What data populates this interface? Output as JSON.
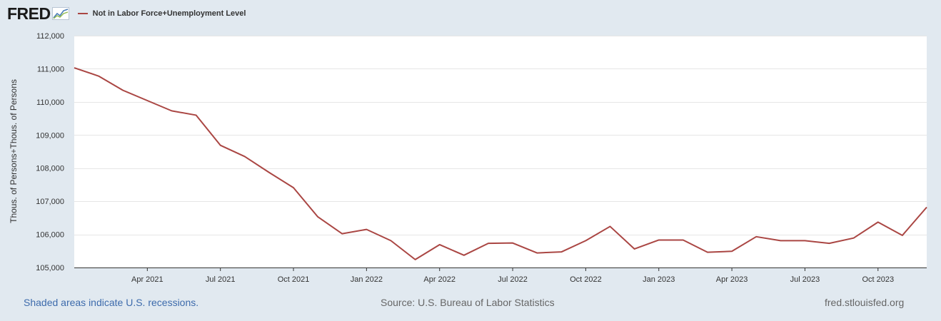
{
  "header": {
    "logo_text": "FRED",
    "logo_icon": "chart-line-icon"
  },
  "chart_data": {
    "type": "line",
    "title": "",
    "xlabel": "",
    "ylabel": "Thous. of Persons+Thous. of Persons",
    "ylim": [
      105000,
      112000
    ],
    "yticks": [
      105000,
      106000,
      107000,
      108000,
      109000,
      110000,
      111000,
      112000
    ],
    "ytick_labels": [
      "105,000",
      "106,000",
      "107,000",
      "108,000",
      "109,000",
      "110,000",
      "111,000",
      "112,000"
    ],
    "xticks": [
      {
        "label": "Apr 2021",
        "index": 3
      },
      {
        "label": "Jul 2021",
        "index": 6
      },
      {
        "label": "Oct 2021",
        "index": 9
      },
      {
        "label": "Jan 2022",
        "index": 12
      },
      {
        "label": "Apr 2022",
        "index": 15
      },
      {
        "label": "Jul 2022",
        "index": 18
      },
      {
        "label": "Oct 2022",
        "index": 21
      },
      {
        "label": "Jan 2023",
        "index": 24
      },
      {
        "label": "Apr 2023",
        "index": 27
      },
      {
        "label": "Jul 2023",
        "index": 30
      },
      {
        "label": "Oct 2023",
        "index": 33
      }
    ],
    "grid": true,
    "series": [
      {
        "name": "Not in Labor Force+Unemployment Level",
        "color": "#aa4643",
        "x": [
          "2021-01",
          "2021-02",
          "2021-03",
          "2021-04",
          "2021-05",
          "2021-06",
          "2021-07",
          "2021-08",
          "2021-09",
          "2021-10",
          "2021-11",
          "2021-12",
          "2022-01",
          "2022-02",
          "2022-03",
          "2022-04",
          "2022-05",
          "2022-06",
          "2022-07",
          "2022-08",
          "2022-09",
          "2022-10",
          "2022-11",
          "2022-12",
          "2023-01",
          "2023-02",
          "2023-03",
          "2023-04",
          "2023-05",
          "2023-06",
          "2023-07",
          "2023-08",
          "2023-09",
          "2023-10",
          "2023-11",
          "2023-12"
        ],
        "values": [
          111030,
          110780,
          110350,
          110040,
          109730,
          109600,
          108690,
          108350,
          107870,
          107410,
          106530,
          106020,
          106150,
          105810,
          105240,
          105690,
          105370,
          105730,
          105740,
          105440,
          105470,
          105810,
          106240,
          105560,
          105830,
          105830,
          105460,
          105490,
          105930,
          105810,
          105810,
          105730,
          105890,
          106370,
          105970,
          106820
        ]
      }
    ]
  },
  "footer": {
    "recession_note": "Shaded areas indicate U.S. recessions.",
    "source": "Source: U.S. Bureau of Labor Statistics",
    "site": "fred.stlouisfed.org"
  }
}
